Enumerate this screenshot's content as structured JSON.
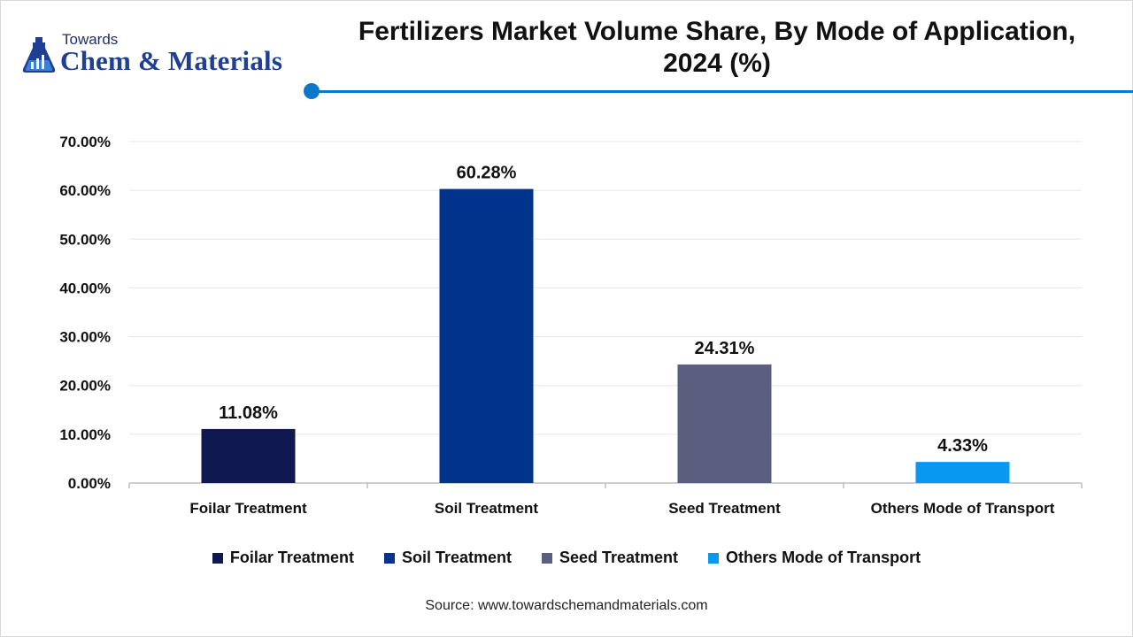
{
  "logo": {
    "line1": "Towards",
    "line2": "Chem & Materials",
    "icon": "flask-chart-icon"
  },
  "colors": {
    "accent": "#0b78c9",
    "foilar": "#0f1850",
    "soil": "#00338c",
    "seed": "#5a5f80",
    "others": "#0a97f0"
  },
  "chart_data": {
    "type": "bar",
    "title": "Fertilizers Market Volume Share, By Mode of Application, 2024 (%)",
    "title_line1": "Fertilizers Market Volume Share, By Mode of Application,",
    "title_line2": "2024 (%)",
    "xlabel": "",
    "ylabel": "",
    "categories": [
      "Foilar Treatment",
      "Soil Treatment",
      "Seed Treatment",
      "Others Mode of Transport"
    ],
    "values": [
      11.08,
      60.28,
      24.31,
      4.33
    ],
    "value_labels": [
      "11.08%",
      "60.28%",
      "24.31%",
      "4.33%"
    ],
    "bar_colors": [
      "#0f1850",
      "#00338c",
      "#5a5f80",
      "#0a97f0"
    ],
    "ylim": [
      0,
      70
    ],
    "yticks": [
      0,
      10,
      20,
      30,
      40,
      50,
      60,
      70
    ],
    "ytick_labels": [
      "0.00%",
      "10.00%",
      "20.00%",
      "30.00%",
      "40.00%",
      "50.00%",
      "60.00%",
      "70.00%"
    ],
    "grid": true,
    "legend": {
      "position": "bottom",
      "entries": [
        "Foilar Treatment",
        "Soil Treatment",
        "Seed Treatment",
        "Others Mode of Transport"
      ]
    }
  },
  "source": "Source: www.towardschemandmaterials.com"
}
